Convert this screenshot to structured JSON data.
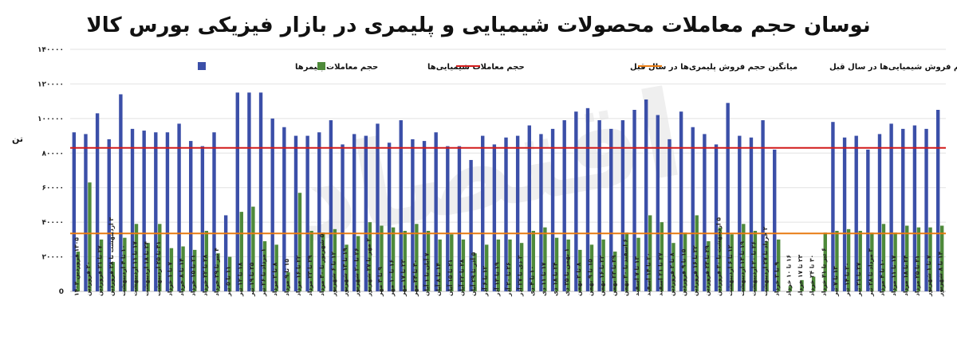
{
  "chart_data": {
    "type": "bar",
    "title": "نوسان حجم معاملات محصولات شیمیایی و پلیمری در بازار فیزیکی بورس کالا",
    "ylabel": "تن",
    "ylim": [
      0,
      140000
    ],
    "yticks": [
      0,
      20000,
      40000,
      60000,
      80000,
      100000,
      120000,
      140000
    ],
    "ytick_labels": [
      "0",
      "۲۰۰۰۰",
      "۴۰۰۰۰",
      "۶۰۰۰۰",
      "۸۰۰۰۰",
      "۱۰۰۰۰۰",
      "۱۲۰۰۰۰",
      "۱۴۰۰۰۰"
    ],
    "legend_position": "top",
    "categories": [
      "۱۳۰۵ فروردین ۱۴۰۳",
      "۲۰ فروردین",
      "۲۷ تا ۲۱ فروردین",
      "۳ اردیبهشت تا ۲۸ فروردین",
      "۱۰ تا ۴ اردیبهشت",
      "۱۷ تا ۱۱ اردیبهشت",
      "۲۴ تا ۱۸ اردیبهشت",
      "۳۱ تا ۲۵ اردیبهشت",
      "۷ تا ۱ خرداد",
      "۱۴ تا ۸ خرداد",
      "۲۱ تا ۱۵ خرداد",
      "۲۸ تا ۲۲ خرداد",
      "۴ تیر تا ۲۹ خرداد",
      "۱۱ تا ۵ تیر",
      "۱۸ تا ۱۲ تیر",
      "۲۵ تا ۱۹ تیر",
      "۱ مرداد تا ۲۶ تیر",
      "۸ تا ۲ مرداد",
      "۱۵ تا ۹ مرداد",
      "۲۲ تا ۱۶ مرداد",
      "۲۹ تا ۲۳ مرداد",
      "۵ شهریور تا ۳۰ مرداد",
      "۱۲ تا ۶ شهریور",
      "۱۹ تا ۱۳ شهریور",
      "۲۶ تا ۲۰ شهریور",
      "۲ مهر تا ۲۷ شهریور",
      "۹ تا ۳ مهر",
      "۱۶ تا ۱۰ مهر",
      "۲۳ تا ۱۷ مهر",
      "۳۰ تا ۲۴ مهر",
      "۷ آبان تا ۱ آبان",
      "۱۴ تا ۸ آبان",
      "۲۱ تا ۱۵ آبان",
      "۲۸ تا ۲۲ آبان",
      "۵ آذر تا ۲۹ آبان",
      "۱۲ تا ۶ آذر",
      "۱۹ تا ۱۳ آذر",
      "۲۶ تا ۲۰ آذر",
      "۳ دی تا ۲۷ آذر",
      "۱۰ تا ۴ دی",
      "۱۷ تا ۱۱ دی",
      "۲۴ تا ۱۸ دی",
      "۱ بهمن تا ۲۵ دی",
      "۸ تا ۲ بهمن",
      "۱۵ تا ۹ بهمن",
      "۲۲ تا ۱۶ بهمن",
      "۲۹ تا ۲۳ بهمن",
      "۶ اسفند تا ۳۰ بهمن",
      "۱۳ تا ۷ اسفند",
      "۲۰ تا ۱۴ اسفند",
      "۲۷ تا ۲۱ اسفند",
      "۸ تا ۲ فروردین",
      "۱۵ تا ۹ فروردین",
      "۲۲ تا ۱۶ فروردین",
      "۲۹ تا ۲۳ فروردین",
      "۵ اردیبهشت تا ۳۰ فروردین",
      "۱۲ تا ۶ اردیبهشت",
      "۱۹ تا ۱۳ اردیبهشت",
      "۲۶ تا ۲۰ اردیبهشت",
      "۲ خرداد تا ۲۷ اردیبهشت",
      "۹ تا ۳ خرداد",
      "۱۶ تا ۱۰ خرداد",
      "۲۳ تا ۱۷ خرداد",
      "۳۰ تا ۲۴ خرداد",
      "۶ تیر تا ۳۱ خرداد",
      "۱۳ تا ۷ تیر",
      "۲۰ تا ۱۴ تیر",
      "۲۷ تا ۲۱ تیر",
      "۳ مرداد تا ۲۸ تیر",
      "۱۰ تا ۴ مرداد",
      "۱۷ تا ۱۱ مرداد",
      "۲۴ تا ۱۸ مرداد",
      "۳۱ تا ۲۵ مرداد",
      "۷ تا ۱ شهریور",
      "۱۴ تا ۸ شهریور"
    ],
    "series": [
      {
        "name": "حجم معاملات پلیمرها",
        "color": "#3b4fa8",
        "values": [
          92000,
          91000,
          103000,
          88000,
          114000,
          94000,
          93000,
          92000,
          92000,
          97000,
          87000,
          84000,
          92000,
          44000,
          115000,
          115000,
          115000,
          100000,
          95000,
          90000,
          90000,
          92000,
          99000,
          85000,
          91000,
          90000,
          97000,
          86000,
          99000,
          88000,
          87000,
          92000,
          84000,
          84000,
          76000,
          90000,
          85000,
          89000,
          90000,
          96000,
          91000,
          94000,
          99000,
          104000,
          106000,
          99000,
          94000,
          99000,
          105000,
          111000,
          102000,
          88000,
          104000,
          95000,
          91000,
          85000,
          109000,
          90000,
          89000,
          99000,
          82000,
          0,
          0,
          0,
          0,
          98000,
          89000,
          90000,
          82000,
          91000,
          97000,
          94000,
          96000,
          94000,
          105000
        ]
      },
      {
        "name": "حجم معاملات شیمیایی‌ها",
        "color": "#4e8a3a",
        "values": [
          23000,
          63000,
          30000,
          17000,
          31000,
          39000,
          28000,
          39000,
          25000,
          26000,
          24000,
          35000,
          22000,
          20000,
          46000,
          49000,
          29000,
          27000,
          11000,
          57000,
          35000,
          34000,
          36000,
          27000,
          32000,
          40000,
          38000,
          37000,
          35000,
          39000,
          35000,
          30000,
          33000,
          30000,
          22000,
          27000,
          30000,
          30000,
          28000,
          35000,
          37000,
          31000,
          30000,
          24000,
          27000,
          30000,
          23000,
          34000,
          31000,
          44000,
          40000,
          28000,
          34000,
          44000,
          29000,
          37000,
          33000,
          39000,
          35000,
          29000,
          30000,
          3000,
          6500,
          8500,
          34000,
          35000,
          36000,
          35000,
          34000,
          39000,
          34000,
          38000,
          37000,
          37000,
          38000
        ]
      }
    ],
    "reference_lines": [
      {
        "name": "میانگین حجم فروش پلیمری‌ها در سال قبل",
        "color": "#d11a1a",
        "value": 83000
      },
      {
        "name": "میانگین حجم فروش شیمیایی‌ها در سال قبل",
        "color": "#e87b12",
        "value": 33500
      }
    ]
  }
}
